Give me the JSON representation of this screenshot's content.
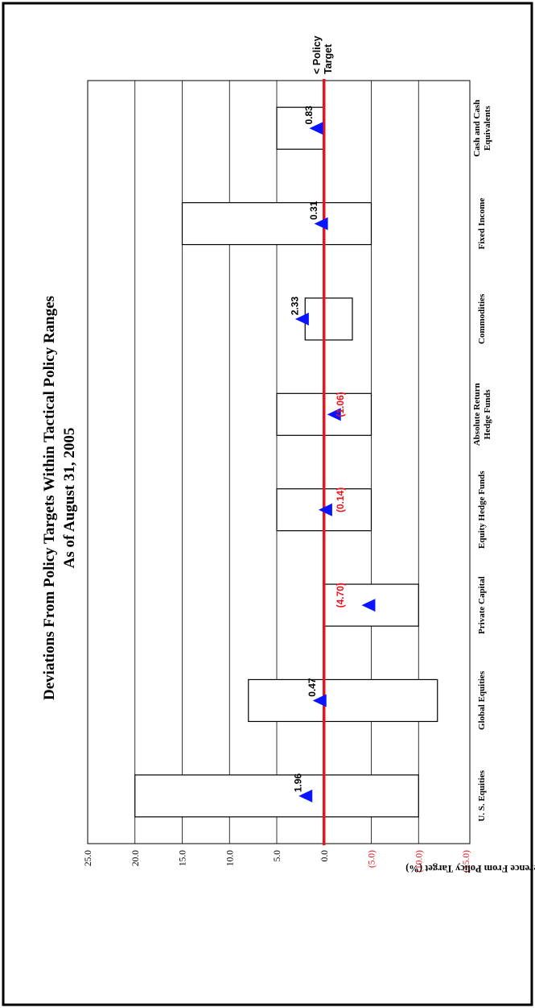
{
  "chart_data": {
    "type": "bar",
    "title": "Deviations From Policy Targets Within Tactical Policy Ranges",
    "subtitle": "As of August 31, 2005",
    "ylabel": "Difference From Policy Target (%)",
    "policy_line_label": "< Policy Target",
    "categories": [
      "U. S. Equities",
      "Global Equities",
      "Private Capital",
      "Equity Hedge Funds",
      "Absolute Return Hedge Funds",
      "Commodities",
      "Fixed Income",
      "Cash and Cash Equivalents"
    ],
    "series": [
      {
        "name": "",
        "values": [
          [
            -10,
            20
          ],
          [
            -12,
            8
          ],
          [
            -10,
            0
          ],
          [
            -5,
            5
          ],
          [
            -5,
            5
          ],
          [
            -3,
            2
          ],
          [
            -5,
            15
          ],
          [
            0,
            5
          ]
        ]
      },
      {
        "name": "",
        "values": [
          1.96,
          0.47,
          -4.7,
          -0.14,
          -1.06,
          2.33,
          0.31,
          0.83
        ]
      }
    ],
    "data_labels": [
      "1.96",
      "0.47",
      "(4.70)",
      "(0.14)",
      "(1.06)",
      "2.33",
      "0.31",
      "0.83"
    ],
    "ylim": [
      -15,
      25
    ],
    "yticks": [
      25,
      20,
      15,
      10,
      5,
      0,
      -5,
      -10,
      -15
    ],
    "ytick_labels": [
      "25.0",
      "20.0",
      "15.0",
      "10.0",
      "5.0",
      "0.0",
      "(5.0)",
      "(10.0)",
      "(15.0)"
    ],
    "grid": true,
    "orientation": "rotated-90",
    "colors": {
      "policy_line": "#e8141c",
      "marker": "#0a14ff",
      "negative_label": "#e8141c",
      "bar_fill": "#ffffff",
      "bar_stroke": "#000000",
      "frame": "#000000"
    }
  }
}
